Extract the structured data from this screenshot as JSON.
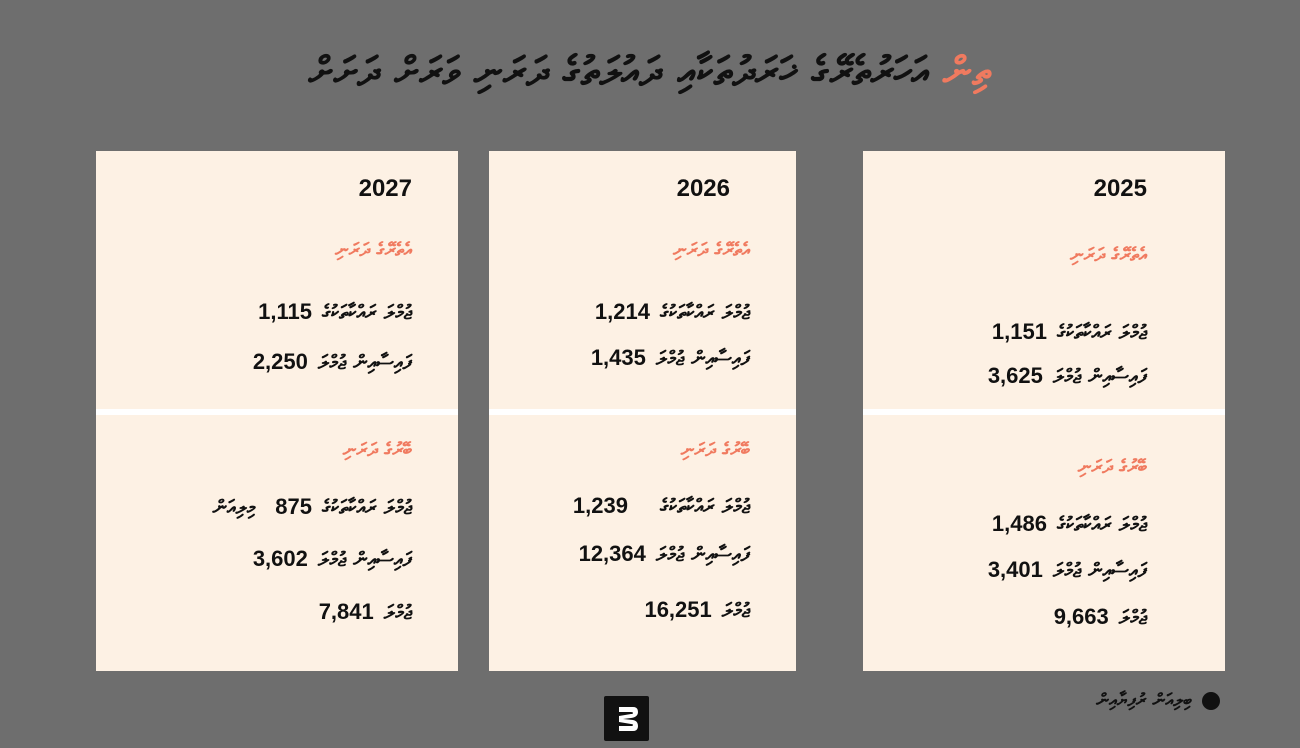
{
  "title": {
    "accent": "ތިން",
    "main": " އަހަރުތެރޭގެ ޚަރަދުތަކާއި ދައުލަތުގެ ދަރަނި ވަރަށް ދަށަށް"
  },
  "labels": {
    "domestic_debt_heading": "އެތެރޭގެ ދަރަނި",
    "foreign_debt_heading": "ބޭރުގެ ދަރަނި",
    "principal_label": "ޖުމްލަ ރައްކާތަކުގެ",
    "interest_label": "ފައިސާއިން ޖުމްލަ",
    "total_label": "ޖުމްލަ",
    "million_suffix": "މިލިއަން"
  },
  "columns": {
    "c2027": {
      "year": "2027",
      "domestic": {
        "principal": "1,115",
        "interest": "2,250"
      },
      "foreign": {
        "principal": "875",
        "interest": "3,602",
        "total": "7,841"
      }
    },
    "c2026": {
      "year": "2026",
      "domestic": {
        "principal": "1,214",
        "interest": "1,435"
      },
      "foreign": {
        "principal": "1,239",
        "interest": "12,364",
        "total": "16,251"
      }
    },
    "c2025": {
      "year": "2025",
      "domestic": {
        "principal": "1,151",
        "interest": "3,625"
      },
      "foreign": {
        "principal": "1,486",
        "interest": "3,401",
        "total": "9,663"
      }
    }
  },
  "legend": {
    "label": "ބިލިއަން ރުފިޔާއިން"
  },
  "colors": {
    "background": "#6e6e6e",
    "card": "#fdf1e4",
    "accent": "#f07a5f",
    "text": "#111111"
  },
  "icons": {
    "logo": "brand-logo-icon",
    "legend_dot": "legend-dot-icon"
  }
}
